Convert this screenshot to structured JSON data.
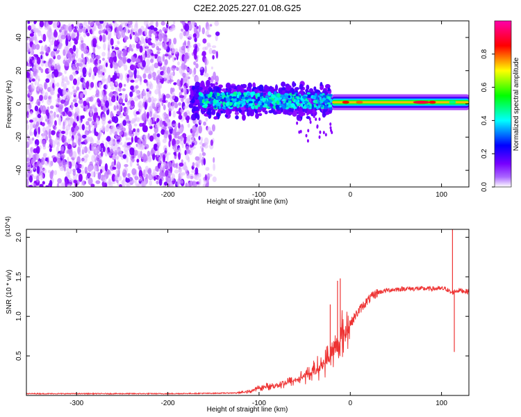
{
  "figure_title": "C2E2.2025.227.01.08.G25",
  "chart_data": [
    {
      "type": "heatmap",
      "title": "C2E2.2025.227.01.08.G25",
      "xlabel": "Height of straight line (km)",
      "ylabel": "Frequency (Hz)",
      "xlim": [
        -355,
        130
      ],
      "ylim": [
        -50,
        50
      ],
      "x_ticks": [
        -300,
        -200,
        -100,
        0,
        100
      ],
      "y_ticks": [
        -40,
        -20,
        0,
        20,
        40
      ],
      "grid": false,
      "colorbar": {
        "label": "Normalized spectral amplitude",
        "range": [
          0,
          1
        ],
        "ticks": [
          0.0,
          0.2,
          0.4,
          0.6,
          0.8
        ],
        "colormap": [
          "#ffffff",
          "#8800ff",
          "#0000ff",
          "#00ffff",
          "#00ff00",
          "#ffff00",
          "#ff0000",
          "#ff00aa"
        ]
      },
      "regions": [
        {
          "x_range": [
            -355,
            -140
          ],
          "freq_range": [
            -50,
            50
          ],
          "amplitude": 0.1,
          "pattern": "broadband noise"
        },
        {
          "x_range": [
            -175,
            -20
          ],
          "freq_center": 2,
          "freq_halfwidth": 8,
          "amplitude": 0.35,
          "pattern": "scattered carrier"
        },
        {
          "x_range": [
            -20,
            130
          ],
          "freq_center": 1,
          "freq_halfwidth": 3,
          "amplitude": 0.75,
          "pattern": "stable carrier"
        }
      ]
    },
    {
      "type": "line",
      "xlabel": "Height of straight line (km)",
      "ylabel": "SNR (10 * v/v)",
      "y_multiplier": "(x10^4)",
      "xlim": [
        -355,
        130
      ],
      "ylim": [
        0,
        2.1
      ],
      "x_ticks": [
        -300,
        -200,
        -100,
        0,
        100
      ],
      "y_ticks": [
        0.5,
        1.0,
        1.5,
        2.0
      ],
      "grid": false,
      "color": "#ee3333",
      "series": [
        {
          "x": [
            -355,
            -300,
            -250,
            -200,
            -150,
            -125,
            -110,
            -100,
            -90,
            -80,
            -70,
            -60,
            -50,
            -40,
            -30,
            -25,
            -20,
            -15,
            -10,
            -5,
            0,
            5,
            10,
            15,
            20,
            25,
            30,
            40,
            50,
            60,
            70,
            80,
            90,
            100,
            105,
            110,
            112,
            115,
            120,
            130
          ],
          "y": [
            0.02,
            0.02,
            0.02,
            0.02,
            0.025,
            0.03,
            0.05,
            0.09,
            0.11,
            0.13,
            0.16,
            0.19,
            0.24,
            0.3,
            0.38,
            0.45,
            0.52,
            0.6,
            0.7,
            0.8,
            0.9,
            1.0,
            1.08,
            1.15,
            1.21,
            1.26,
            1.3,
            1.33,
            1.34,
            1.35,
            1.35,
            1.35,
            1.35,
            1.35,
            1.35,
            1.3,
            1.3,
            1.32,
            1.33,
            1.31
          ],
          "spikes": [
            [
              -14,
              1.45
            ],
            [
              -11,
              1.48
            ],
            [
              -22,
              1.15
            ],
            [
              112,
              2.1
            ],
            [
              114,
              0.55
            ]
          ]
        }
      ]
    }
  ]
}
